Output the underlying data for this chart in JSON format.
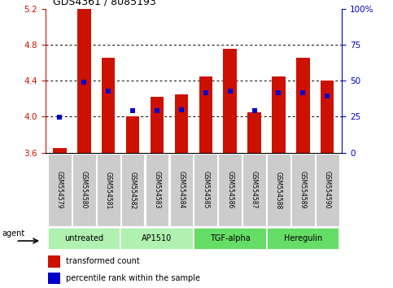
{
  "title": "GDS4361 / 8085193",
  "samples": [
    "GSM554579",
    "GSM554580",
    "GSM554581",
    "GSM554582",
    "GSM554583",
    "GSM554584",
    "GSM554585",
    "GSM554586",
    "GSM554587",
    "GSM554588",
    "GSM554589",
    "GSM554590"
  ],
  "red_values": [
    3.65,
    5.2,
    4.65,
    4.0,
    4.22,
    4.25,
    4.45,
    4.75,
    4.05,
    4.45,
    4.65,
    4.4
  ],
  "blue_values": [
    3.99,
    4.38,
    4.28,
    4.07,
    4.07,
    4.08,
    4.27,
    4.28,
    4.07,
    4.27,
    4.27,
    4.23
  ],
  "ymin": 3.6,
  "ymax": 5.2,
  "yticks_left": [
    3.6,
    4.0,
    4.4,
    4.8,
    5.2
  ],
  "yticks_right": [
    0,
    25,
    50,
    75,
    100
  ],
  "grid_values": [
    4.0,
    4.4,
    4.8
  ],
  "groups": [
    {
      "label": "untreated",
      "start": 0,
      "end": 3
    },
    {
      "label": "AP1510",
      "start": 3,
      "end": 6
    },
    {
      "label": "TGF-alpha",
      "start": 6,
      "end": 9
    },
    {
      "label": "Heregulin",
      "start": 9,
      "end": 12
    }
  ],
  "group_colors": [
    "#b0f0b0",
    "#b0f0b0",
    "#66dd66",
    "#66dd66"
  ],
  "bar_bottom": 3.6,
  "bar_width": 0.55,
  "red_color": "#cc1100",
  "blue_color": "#0000cc",
  "blue_marker_size": 4,
  "left_tick_color": "#cc1100",
  "right_tick_color": "#0000cc",
  "legend_red_label": "transformed count",
  "legend_blue_label": "percentile rank within the sample",
  "agent_label": "agent",
  "sample_box_color": "#cccccc"
}
